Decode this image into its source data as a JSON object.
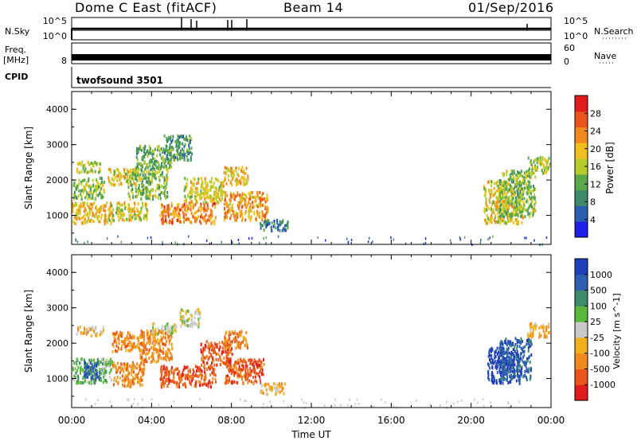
{
  "header": {
    "station": "Dome C East (fitACF)",
    "beam": "Beam 14",
    "date": "01/Sep/2016"
  },
  "strips": {
    "nsky_label": "N.Sky",
    "nsky_ticks": [
      "10^5",
      "10^0"
    ],
    "nsearch_label": "N.Search",
    "nsearch_ticks": [
      "10^5",
      "10^0"
    ],
    "freq_label_1": "Freq.",
    "freq_label_2": "[MHz]",
    "freq_ticks": [
      "8"
    ],
    "nave_label": "Nave",
    "nave_ticks": [
      "60",
      "0"
    ],
    "cpid_label": "CPID",
    "cpid_value": "twofsound 3501"
  },
  "colors": {
    "power": [
      "#1f1fe6",
      "#2a5fb0",
      "#3e8a6a",
      "#5aa84a",
      "#b5cc2a",
      "#f2c01e",
      "#f08a1e",
      "#e8561a",
      "#e01c1c"
    ],
    "velocity": [
      "#e01c1c",
      "#e8561a",
      "#f08a1e",
      "#f2b01e",
      "#c8c8c8",
      "#5ab83a",
      "#3e8a6a",
      "#2f5fb0",
      "#1f3fb8"
    ]
  },
  "chart_data": [
    {
      "type": "heatmap",
      "name": "power",
      "ylabel": "Slant Range [km]",
      "xlabel": "",
      "ylim": [
        180,
        4500
      ],
      "yticks": [
        "1000",
        "2000",
        "3000",
        "4000"
      ],
      "ytick_values": [
        1000,
        2000,
        3000,
        4000
      ],
      "xlim": [
        0,
        24
      ],
      "colorbar_label": "Power [dB]",
      "colorbar_ticks": [
        "4",
        "8",
        "12",
        "16",
        "20",
        "24",
        "28"
      ],
      "colorbar_tick_values": [
        4,
        8,
        12,
        16,
        20,
        24,
        28
      ],
      "colorbar_range": [
        0,
        32
      ],
      "blobs": [
        {
          "t0": 0.0,
          "t1": 2.0,
          "r0": 800,
          "r1": 1400,
          "v": 20
        },
        {
          "t0": 0.0,
          "t1": 1.6,
          "r0": 1500,
          "r1": 2100,
          "v": 14
        },
        {
          "t0": 0.2,
          "t1": 1.4,
          "r0": 2250,
          "r1": 2550,
          "v": 16
        },
        {
          "t0": 1.8,
          "t1": 3.3,
          "r0": 1900,
          "r1": 2350,
          "v": 18
        },
        {
          "t0": 1.8,
          "t1": 3.8,
          "r0": 900,
          "r1": 1400,
          "v": 18
        },
        {
          "t0": 2.8,
          "t1": 4.8,
          "r0": 1500,
          "r1": 2400,
          "v": 14
        },
        {
          "t0": 3.2,
          "t1": 5.0,
          "r0": 2400,
          "r1": 3000,
          "v": 12
        },
        {
          "t0": 4.6,
          "t1": 6.0,
          "r0": 2600,
          "r1": 3300,
          "v": 10
        },
        {
          "t0": 4.4,
          "t1": 7.2,
          "r0": 800,
          "r1": 1400,
          "v": 24
        },
        {
          "t0": 5.6,
          "t1": 7.6,
          "r0": 1400,
          "r1": 2100,
          "v": 18
        },
        {
          "t0": 7.6,
          "t1": 8.8,
          "r0": 1900,
          "r1": 2400,
          "v": 20
        },
        {
          "t0": 7.6,
          "t1": 9.8,
          "r0": 900,
          "r1": 1700,
          "v": 22
        },
        {
          "t0": 9.4,
          "t1": 10.8,
          "r0": 600,
          "r1": 900,
          "v": 8
        },
        {
          "t0": 20.6,
          "t1": 22.6,
          "r0": 800,
          "r1": 2000,
          "v": 18
        },
        {
          "t0": 21.4,
          "t1": 23.2,
          "r0": 1000,
          "r1": 2300,
          "v": 14
        },
        {
          "t0": 22.8,
          "t1": 23.9,
          "r0": 2200,
          "r1": 2700,
          "v": 16
        }
      ]
    },
    {
      "type": "heatmap",
      "name": "velocity",
      "ylabel": "Slant Range [km]",
      "xlabel": "Time UT",
      "ylim": [
        180,
        4500
      ],
      "yticks": [
        "1000",
        "2000",
        "3000",
        "4000"
      ],
      "ytick_values": [
        1000,
        2000,
        3000,
        4000
      ],
      "xlim": [
        0,
        24
      ],
      "xticks": [
        "00:00",
        "04:00",
        "08:00",
        "12:00",
        "16:00",
        "20:00",
        "00:00"
      ],
      "xtick_values": [
        0,
        4,
        8,
        12,
        16,
        20,
        24
      ],
      "colorbar_label": "Velocity [m s^-1]",
      "colorbar_ticks": [
        "-1000",
        "-500",
        "-100",
        "-25",
        "25",
        "100",
        "500",
        "1000"
      ],
      "blobs": [
        {
          "t0": 0.0,
          "t1": 2.0,
          "r0": 900,
          "r1": 1600,
          "v": 5
        },
        {
          "t0": 0.6,
          "t1": 1.4,
          "r0": 1000,
          "r1": 1500,
          "v": 7
        },
        {
          "t0": 0.2,
          "t1": 1.6,
          "r0": 2250,
          "r1": 2500,
          "v": 3
        },
        {
          "t0": 2.0,
          "t1": 3.6,
          "r0": 800,
          "r1": 1500,
          "v": 2
        },
        {
          "t0": 2.0,
          "t1": 3.6,
          "r0": 1800,
          "r1": 2350,
          "v": 2
        },
        {
          "t0": 3.4,
          "t1": 5.0,
          "r0": 1500,
          "r1": 2400,
          "v": 2
        },
        {
          "t0": 4.0,
          "t1": 5.2,
          "r0": 2300,
          "r1": 2600,
          "v": 4
        },
        {
          "t0": 5.4,
          "t1": 6.4,
          "r0": 2500,
          "r1": 3000,
          "v": 4
        },
        {
          "t0": 4.4,
          "t1": 7.2,
          "r0": 800,
          "r1": 1400,
          "v": 1
        },
        {
          "t0": 6.4,
          "t1": 8.0,
          "r0": 1400,
          "r1": 2100,
          "v": 1
        },
        {
          "t0": 7.6,
          "t1": 8.8,
          "r0": 1900,
          "r1": 2400,
          "v": 2
        },
        {
          "t0": 7.6,
          "t1": 9.6,
          "r0": 900,
          "r1": 1600,
          "v": 1
        },
        {
          "t0": 9.4,
          "t1": 10.8,
          "r0": 600,
          "r1": 900,
          "v": 3
        },
        {
          "t0": 20.8,
          "t1": 22.4,
          "r0": 900,
          "r1": 1900,
          "v": 8
        },
        {
          "t0": 21.4,
          "t1": 23.0,
          "r0": 1000,
          "r1": 2200,
          "v": 7
        },
        {
          "t0": 22.8,
          "t1": 23.9,
          "r0": 2200,
          "r1": 2600,
          "v": 3
        }
      ]
    }
  ]
}
